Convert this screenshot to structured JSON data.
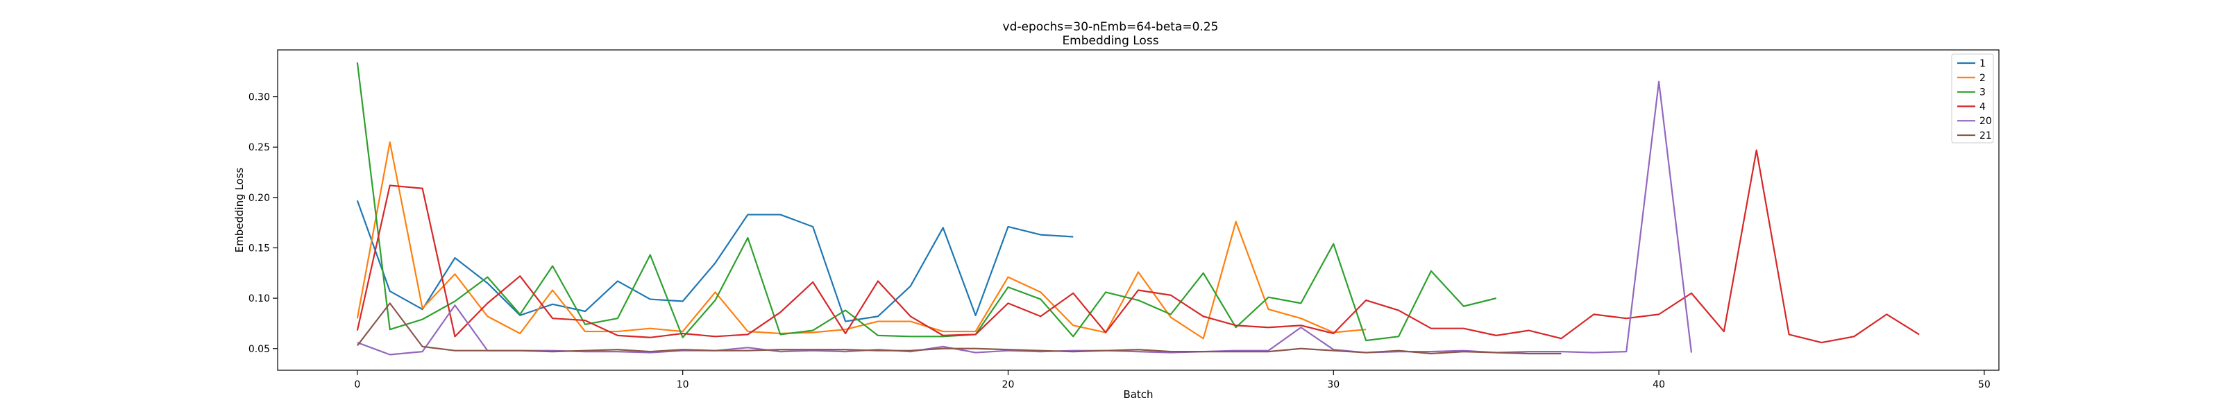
{
  "chart_data": {
    "type": "line",
    "title": "vd-epochs=30-nEmb=64-beta=0.25",
    "subtitle": "Embedding Loss",
    "xlabel": "Batch",
    "ylabel": "Embedding Loss",
    "xlim": [
      -2.45,
      50.45
    ],
    "ylim": [
      0.0285,
      0.3465
    ],
    "xticks": [
      0,
      10,
      20,
      30,
      40,
      50
    ],
    "yticks": [
      0.05,
      0.1,
      0.15,
      0.2,
      0.25,
      0.3
    ],
    "grid": false,
    "legend_position": "top-right",
    "series": [
      {
        "name": "1",
        "color": "#1f77b4",
        "values": [
          0.197,
          0.107,
          0.089,
          0.14,
          0.115,
          0.083,
          0.094,
          0.087,
          0.117,
          0.099,
          0.097,
          0.135,
          0.183,
          0.183,
          0.171,
          0.077,
          0.082,
          0.112,
          0.17,
          0.083,
          0.171,
          0.163,
          0.161
        ]
      },
      {
        "name": "2",
        "color": "#ff7f0e",
        "values": [
          0.08,
          0.255,
          0.09,
          0.124,
          0.082,
          0.065,
          0.108,
          0.067,
          0.067,
          0.07,
          0.067,
          0.106,
          0.067,
          0.065,
          0.066,
          0.069,
          0.077,
          0.077,
          0.067,
          0.067,
          0.121,
          0.106,
          0.073,
          0.066,
          0.126,
          0.081,
          0.06,
          0.176,
          0.089,
          0.08,
          0.066,
          0.069
        ]
      },
      {
        "name": "3",
        "color": "#2ca02c",
        "values": [
          0.334,
          0.069,
          0.079,
          0.097,
          0.121,
          0.084,
          0.132,
          0.074,
          0.08,
          0.143,
          0.061,
          0.098,
          0.16,
          0.064,
          0.068,
          0.088,
          0.063,
          0.062,
          0.062,
          0.064,
          0.111,
          0.099,
          0.062,
          0.106,
          0.098,
          0.084,
          0.125,
          0.071,
          0.101,
          0.095,
          0.154,
          0.058,
          0.062,
          0.127,
          0.092,
          0.1
        ]
      },
      {
        "name": "4",
        "color": "#d62728",
        "values": [
          0.068,
          0.212,
          0.209,
          0.062,
          0.095,
          0.122,
          0.08,
          0.078,
          0.063,
          0.061,
          0.065,
          0.062,
          0.064,
          0.086,
          0.116,
          0.065,
          0.117,
          0.082,
          0.063,
          0.064,
          0.095,
          0.082,
          0.105,
          0.066,
          0.108,
          0.103,
          0.082,
          0.073,
          0.071,
          0.073,
          0.065,
          0.098,
          0.088,
          0.07,
          0.07,
          0.063,
          0.068,
          0.06,
          0.084,
          0.08,
          0.084,
          0.105,
          0.067,
          0.247,
          0.064,
          0.056,
          0.062,
          0.084,
          0.064
        ]
      },
      {
        "name": "20",
        "color": "#9467bd",
        "values": [
          0.056,
          0.044,
          0.047,
          0.093,
          0.048,
          0.048,
          0.048,
          0.047,
          0.047,
          0.046,
          0.048,
          0.048,
          0.051,
          0.047,
          0.048,
          0.047,
          0.049,
          0.047,
          0.052,
          0.046,
          0.048,
          0.047,
          0.048,
          0.048,
          0.047,
          0.046,
          0.047,
          0.048,
          0.048,
          0.071,
          0.049,
          0.046,
          0.047,
          0.047,
          0.048,
          0.046,
          0.047,
          0.047,
          0.046,
          0.047,
          0.315,
          0.046
        ]
      },
      {
        "name": "21",
        "color": "#8c564b",
        "values": [
          0.053,
          0.095,
          0.052,
          0.048,
          0.048,
          0.048,
          0.047,
          0.048,
          0.049,
          0.047,
          0.049,
          0.048,
          0.048,
          0.049,
          0.049,
          0.049,
          0.048,
          0.048,
          0.05,
          0.05,
          0.049,
          0.048,
          0.047,
          0.048,
          0.049,
          0.047,
          0.047,
          0.047,
          0.047,
          0.05,
          0.048,
          0.046,
          0.048,
          0.045,
          0.047,
          0.046,
          0.045,
          0.045
        ]
      }
    ]
  }
}
